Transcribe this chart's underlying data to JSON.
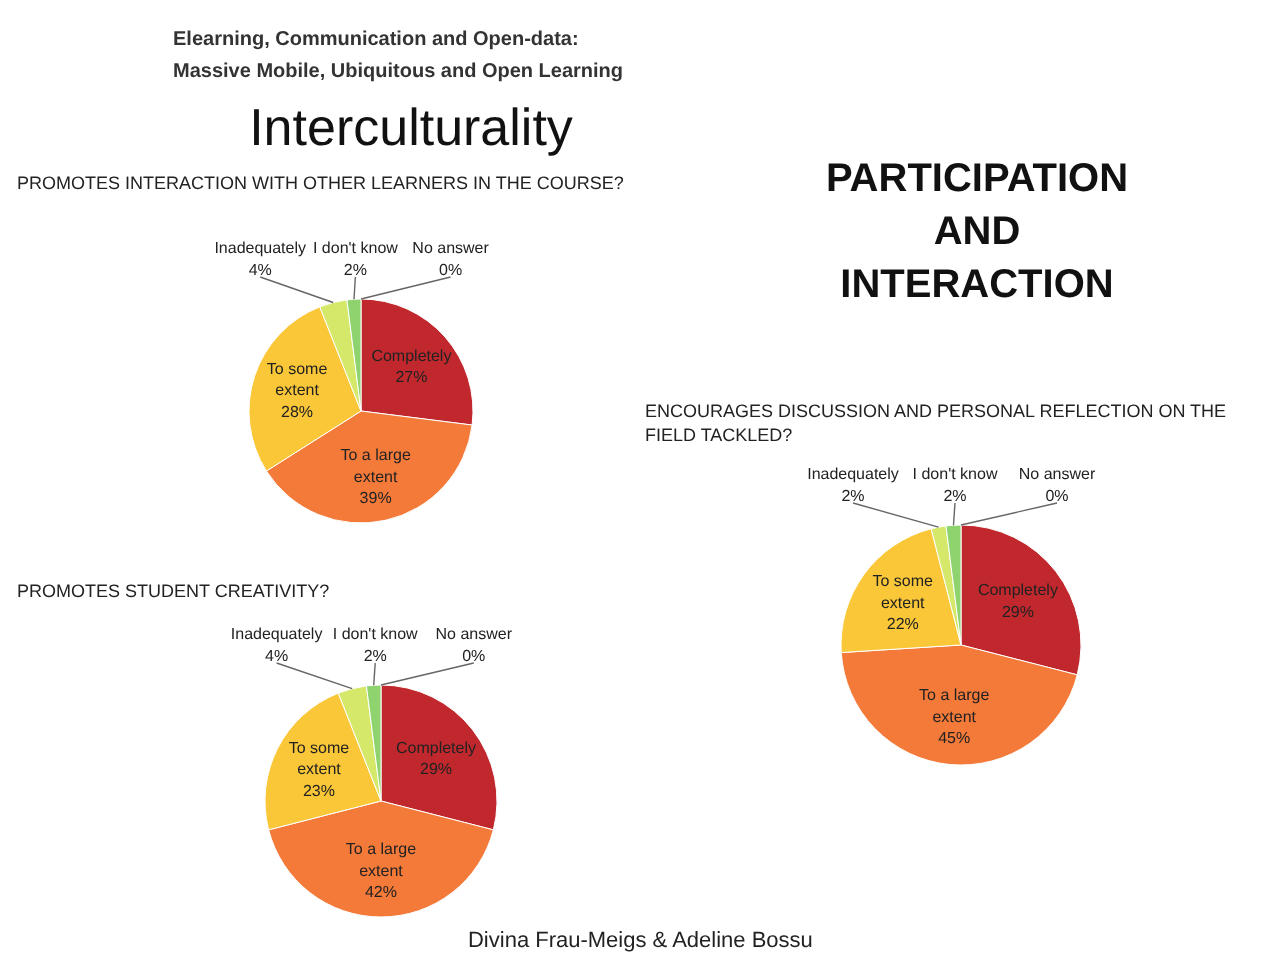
{
  "chart_data": [
    {
      "type": "pie",
      "title": "PROMOTES INTERACTION WITH OTHER LEARNERS IN THE COURSE?",
      "categories": [
        "Completely",
        "To a large extent",
        "To some extent",
        "Inadequately",
        "I don't know",
        "No answer"
      ],
      "values": [
        27,
        39,
        28,
        4,
        2,
        0
      ],
      "value_labels": [
        "27%",
        "39%",
        "28%",
        "4%",
        "2%",
        "0%"
      ],
      "colors": [
        "#c0282d",
        "#f47a3a",
        "#fac738",
        "#d5e86a",
        "#8fd36f",
        "#5fb4e0"
      ],
      "annotations": [
        "Elearning, Communication and Open-data:",
        "Massive Mobile, Ubiquitous and Open Learning",
        "Interculturality"
      ]
    },
    {
      "type": "pie",
      "title": "PROMOTES STUDENT CREATIVITY?",
      "categories": [
        "Completely",
        "To a large extent",
        "To some extent",
        "Inadequately",
        "I don't know",
        "No answer"
      ],
      "values": [
        29,
        42,
        23,
        4,
        2,
        0
      ],
      "value_labels": [
        "29%",
        "42%",
        "23%",
        "4%",
        "2%",
        "0%"
      ],
      "colors": [
        "#c0282d",
        "#f47a3a",
        "#fac738",
        "#d5e86a",
        "#8fd36f",
        "#5fb4e0"
      ]
    },
    {
      "type": "pie",
      "title": "ENCOURAGES DISCUSSION AND PERSONAL REFLECTION ON THE FIELD TACKLED?",
      "categories": [
        "Completely",
        "To a large extent",
        "To some extent",
        "Inadequately",
        "I don't know",
        "No answer"
      ],
      "values": [
        29,
        45,
        22,
        2,
        2,
        0
      ],
      "value_labels": [
        "29%",
        "45%",
        "22%",
        "2%",
        "2%",
        "0%"
      ],
      "colors": [
        "#c0282d",
        "#f47a3a",
        "#fac738",
        "#d5e86a",
        "#8fd36f",
        "#5fb4e0"
      ],
      "annotations": [
        "PARTICIPATION AND INTERACTION",
        "Divina Frau-Meigs & Adeline Bossu"
      ]
    }
  ]
}
